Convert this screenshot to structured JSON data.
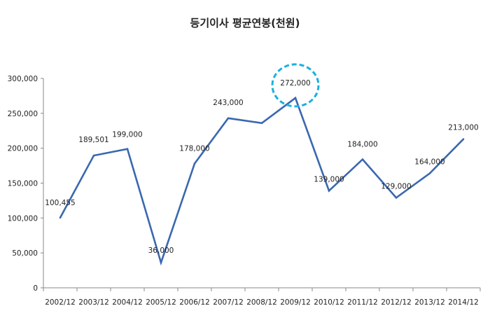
{
  "chart_data": {
    "type": "line",
    "title": "등기이사 평균연봉(천원)",
    "xlabel": "",
    "ylabel": "",
    "categories": [
      "2002/12",
      "2003/12",
      "2004/12",
      "2005/12",
      "2006/12",
      "2007/12",
      "2008/12",
      "2009/12",
      "2010/12",
      "2011/12",
      "2012/12",
      "2013/12",
      "2014/12"
    ],
    "series": [
      {
        "values": [
          100455,
          189501,
          199000,
          36000,
          178000,
          243000,
          236000,
          272000,
          139000,
          184000,
          129000,
          164000,
          213000
        ],
        "color": "#3A68B0"
      }
    ],
    "data_labels": [
      "100,455",
      "189,501",
      "199,000",
      "36,000",
      "178,000",
      "243,000",
      "",
      "272,000",
      "139,000",
      "184,000",
      "129,000",
      "164,000",
      "213,000"
    ],
    "y_ticks": [
      "0",
      "50,000",
      "100,000",
      "150,000",
      "200,000",
      "250,000",
      "300,000"
    ],
    "ylim": [
      0,
      300000
    ],
    "grid": false,
    "legend": "none",
    "highlight": {
      "category": "2009/12",
      "color": "#1BB0DD",
      "style": "dashed-circle"
    }
  }
}
